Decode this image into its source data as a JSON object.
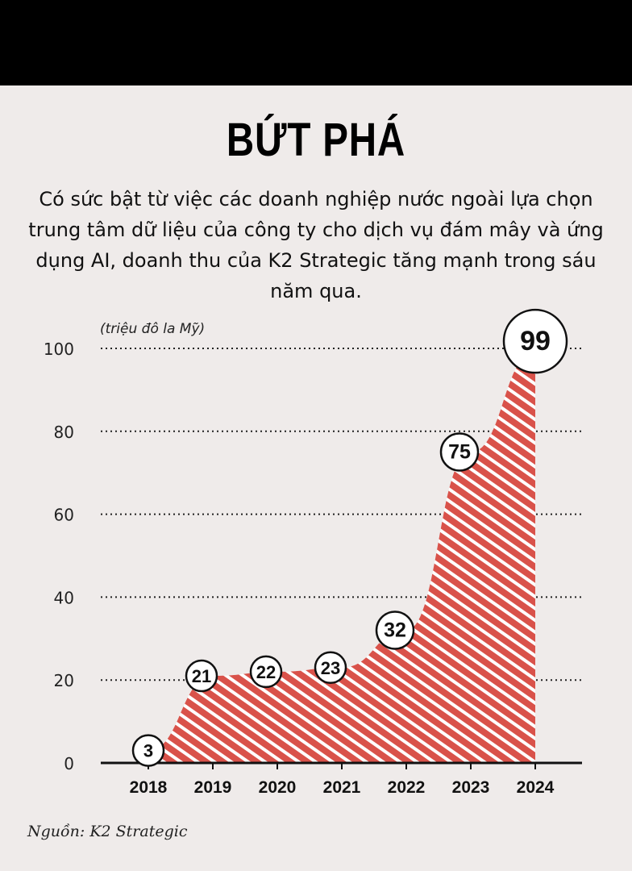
{
  "header": {
    "title": "BỨT PHÁ",
    "subtitle": "Có sức bật từ việc các doanh nghiệp nước ngoài lựa chọn trung tâm dữ liệu của công ty cho dịch vụ đám mây và ứng dụng AI, doanh thu của K2 Strategic tăng mạnh trong sáu năm qua."
  },
  "source": "Nguồn: K2 Strategic",
  "colors": {
    "background": "#efebea",
    "area_fill": "#d9524a",
    "stripe": "#ffffff",
    "top_bar": "#000000"
  },
  "chart_data": {
    "type": "area",
    "unit_label": "(triệu đô la Mỹ)",
    "categories": [
      "2018",
      "2019",
      "2020",
      "2021",
      "2022",
      "2023",
      "2024"
    ],
    "values": [
      3,
      21,
      22,
      23,
      32,
      75,
      99
    ],
    "data_labels": [
      "3",
      "21",
      "22",
      "23",
      "32",
      "75",
      "99"
    ],
    "ylim": [
      0,
      100
    ],
    "yticks": [
      "0",
      "20",
      "40",
      "60",
      "80",
      "100"
    ],
    "grid": "dotted horizontal",
    "fill_pattern": "diagonal white stripes on red"
  }
}
